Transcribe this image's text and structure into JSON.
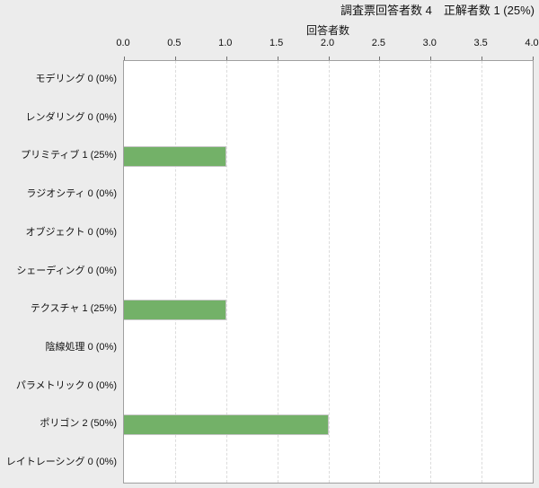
{
  "header": {
    "title": "調査票回答者数 4　正解者数 1 (25%)",
    "summary": {
      "respondents": 4,
      "correct": 1,
      "correct_rate": "25%"
    }
  },
  "chart_data": {
    "type": "bar",
    "orientation": "horizontal",
    "title": "調査票回答者数 4　正解者数 1 (25%)",
    "xlabel": "回答者数",
    "ylabel": "",
    "xlim": [
      0,
      4
    ],
    "xticks": [
      0,
      0.5,
      1,
      1.5,
      2,
      2.5,
      3,
      3.5,
      4
    ],
    "xtick_labels": [
      "0.0",
      "0.5",
      "1.0",
      "1.5",
      "2.0",
      "2.5",
      "3.0",
      "3.5",
      "4.0"
    ],
    "grid": "vertical-dashed",
    "legend_position": "none",
    "axis_position": "top",
    "categories": [
      "モデリング",
      "レンダリング",
      "プリミティブ",
      "ラジオシティ",
      "オブジェクト",
      "シェーディング",
      "テクスチャ",
      "陰線処理",
      "パラメトリック",
      "ポリゴン",
      "レイトレーシング"
    ],
    "values": [
      0,
      0,
      1,
      0,
      0,
      0,
      1,
      0,
      0,
      2,
      0
    ],
    "percent_labels": [
      "0%",
      "0%",
      "25%",
      "0%",
      "0%",
      "0%",
      "25%",
      "0%",
      "0%",
      "50%",
      "0%"
    ],
    "colors": {
      "background": "#ececec",
      "plot_background": "#ffffff",
      "plot_border": "#a0a0a0",
      "gridline": "#dcdcdc",
      "bar_fill": "#73b168",
      "bar_border": "#c6c6c6",
      "text": "#111111"
    }
  }
}
